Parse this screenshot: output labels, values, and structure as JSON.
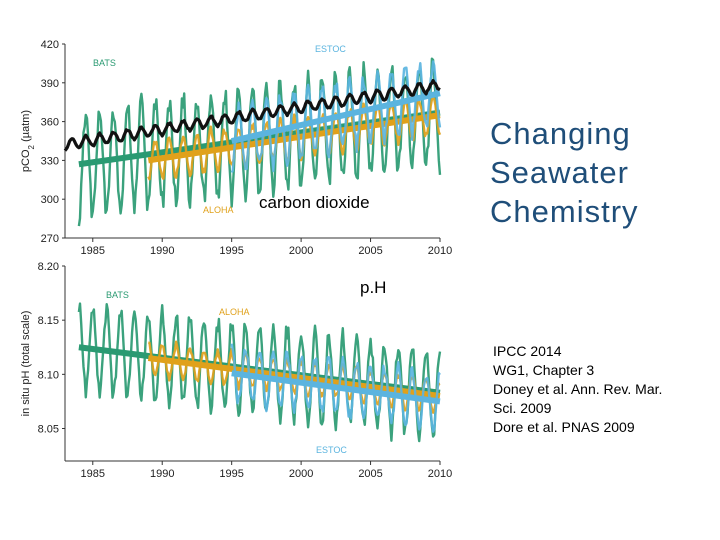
{
  "slide": {
    "title_lines": [
      "Changing",
      "Seawater",
      "Chemistry"
    ],
    "label_co2": "carbon dioxide",
    "label_ph": "p.H",
    "references": [
      "IPCC 2014",
      "WG1, Chapter 3",
      "Doney et al. Ann. Rev. Mar.",
      "Sci. 2009",
      "Dore et al. PNAS 2009"
    ]
  },
  "colors": {
    "bats": "#2a9a72",
    "aloha": "#e0a11b",
    "estoc": "#5bb4df",
    "atmosphere": "#111111"
  },
  "chart_data": [
    {
      "type": "line",
      "ylabel": "pCO2 (µatm)",
      "xlabel": "",
      "xlim": [
        1983,
        2010
      ],
      "ylim": [
        270,
        420
      ],
      "xticks": [
        1985,
        1990,
        1995,
        2000,
        2005,
        2010
      ],
      "yticks": [
        270,
        300,
        330,
        360,
        390,
        420
      ],
      "series": [
        {
          "name": "BATS",
          "trend": [
            [
              1984,
              327
            ],
            [
              2010,
              367
            ]
          ],
          "seasonal_amplitude": 40,
          "x_range": [
            1984,
            2010
          ]
        },
        {
          "name": "ALOHA",
          "trend": [
            [
              1989,
              330
            ],
            [
              2010,
              365
            ]
          ],
          "seasonal_amplitude": 15,
          "x_range": [
            1989,
            2010
          ]
        },
        {
          "name": "ESTOC",
          "trend": [
            [
              1995,
              345
            ],
            [
              2010,
              382
            ]
          ],
          "seasonal_amplitude": 25,
          "x_range": [
            1995,
            2010
          ]
        },
        {
          "name": "",
          "trend": [
            [
              1983,
              342
            ],
            [
              2010,
              388
            ]
          ],
          "seasonal_amplitude": 4,
          "x_range": [
            1983,
            2010
          ]
        }
      ]
    },
    {
      "type": "line",
      "ylabel": "in situ pH (total scale)",
      "xlabel": "",
      "xlim": [
        1983,
        2010
      ],
      "ylim": [
        8.02,
        8.2
      ],
      "xticks": [
        1985,
        1990,
        1995,
        2000,
        2005,
        2010
      ],
      "yticks": [
        8.05,
        8.1,
        8.15,
        8.2
      ],
      "series": [
        {
          "name": "BATS",
          "trend": [
            [
              1984,
              8.125
            ],
            [
              2010,
              8.083
            ]
          ],
          "seasonal_amplitude": 0.04,
          "x_range": [
            1984,
            2010
          ]
        },
        {
          "name": "ALOHA",
          "trend": [
            [
              1989,
              8.115
            ],
            [
              2010,
              8.08
            ]
          ],
          "seasonal_amplitude": 0.015,
          "x_range": [
            1989,
            2010
          ]
        },
        {
          "name": "ESTOC",
          "trend": [
            [
              1995,
              8.101
            ],
            [
              2010,
              8.075
            ]
          ],
          "seasonal_amplitude": 0.025,
          "x_range": [
            1995,
            2010
          ]
        }
      ]
    }
  ]
}
